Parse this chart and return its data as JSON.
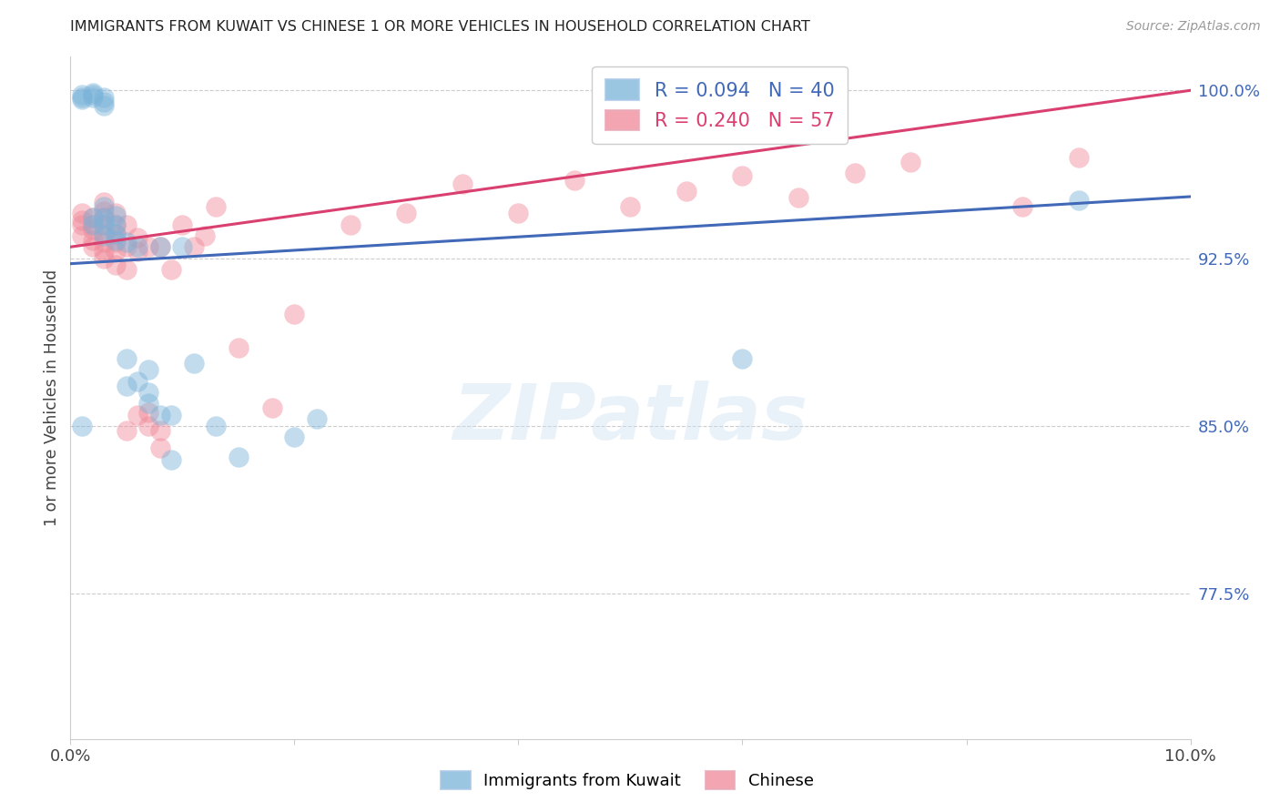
{
  "title": "IMMIGRANTS FROM KUWAIT VS CHINESE 1 OR MORE VEHICLES IN HOUSEHOLD CORRELATION CHART",
  "source": "Source: ZipAtlas.com",
  "ylabel": "1 or more Vehicles in Household",
  "legend_blue_r": "R = 0.094",
  "legend_blue_n": "N = 40",
  "legend_pink_r": "R = 0.240",
  "legend_pink_n": "N = 57",
  "legend_blue_label": "Immigrants from Kuwait",
  "legend_pink_label": "Chinese",
  "xlim": [
    0.0,
    0.1
  ],
  "ylim": [
    0.71,
    1.015
  ],
  "watermark": "ZIPatlas",
  "blue_color": "#7ab3d9",
  "pink_color": "#f08898",
  "blue_line_color": "#4169b8",
  "pink_line_color": "#d94070",
  "blue_line_x0": 0.0,
  "blue_line_x1": 0.1,
  "blue_line_y0": 0.9225,
  "blue_line_y1": 0.9525,
  "pink_line_x0": 0.0,
  "pink_line_x1": 0.1,
  "pink_line_y0": 0.93,
  "pink_line_y1": 1.0,
  "blue_scatter_x": [
    0.001,
    0.001,
    0.001,
    0.002,
    0.002,
    0.002,
    0.002,
    0.002,
    0.003,
    0.003,
    0.003,
    0.003,
    0.003,
    0.003,
    0.003,
    0.004,
    0.004,
    0.004,
    0.004,
    0.005,
    0.005,
    0.005,
    0.006,
    0.006,
    0.007,
    0.007,
    0.007,
    0.008,
    0.008,
    0.009,
    0.009,
    0.01,
    0.011,
    0.013,
    0.015,
    0.02,
    0.022,
    0.001,
    0.06,
    0.09
  ],
  "blue_scatter_y": [
    0.996,
    0.997,
    0.998,
    0.997,
    0.998,
    0.999,
    0.94,
    0.943,
    0.993,
    0.995,
    0.997,
    0.935,
    0.94,
    0.943,
    0.948,
    0.933,
    0.936,
    0.94,
    0.944,
    0.868,
    0.88,
    0.932,
    0.87,
    0.93,
    0.86,
    0.865,
    0.875,
    0.855,
    0.93,
    0.835,
    0.855,
    0.93,
    0.878,
    0.85,
    0.836,
    0.845,
    0.853,
    0.85,
    0.88,
    0.951
  ],
  "pink_scatter_x": [
    0.001,
    0.001,
    0.001,
    0.001,
    0.002,
    0.002,
    0.002,
    0.002,
    0.002,
    0.003,
    0.003,
    0.003,
    0.003,
    0.003,
    0.003,
    0.003,
    0.003,
    0.004,
    0.004,
    0.004,
    0.004,
    0.004,
    0.004,
    0.005,
    0.005,
    0.005,
    0.005,
    0.006,
    0.006,
    0.006,
    0.007,
    0.007,
    0.007,
    0.008,
    0.008,
    0.008,
    0.009,
    0.01,
    0.011,
    0.012,
    0.013,
    0.015,
    0.018,
    0.02,
    0.025,
    0.03,
    0.035,
    0.04,
    0.045,
    0.05,
    0.055,
    0.06,
    0.065,
    0.07,
    0.075,
    0.085,
    0.09
  ],
  "pink_scatter_y": [
    0.935,
    0.94,
    0.942,
    0.945,
    0.93,
    0.933,
    0.938,
    0.94,
    0.943,
    0.925,
    0.928,
    0.932,
    0.936,
    0.94,
    0.943,
    0.946,
    0.95,
    0.922,
    0.928,
    0.932,
    0.936,
    0.94,
    0.945,
    0.848,
    0.92,
    0.93,
    0.94,
    0.855,
    0.928,
    0.934,
    0.85,
    0.856,
    0.93,
    0.84,
    0.848,
    0.93,
    0.92,
    0.94,
    0.93,
    0.935,
    0.948,
    0.885,
    0.858,
    0.9,
    0.94,
    0.945,
    0.958,
    0.945,
    0.96,
    0.948,
    0.955,
    0.962,
    0.952,
    0.963,
    0.968,
    0.948,
    0.97
  ]
}
